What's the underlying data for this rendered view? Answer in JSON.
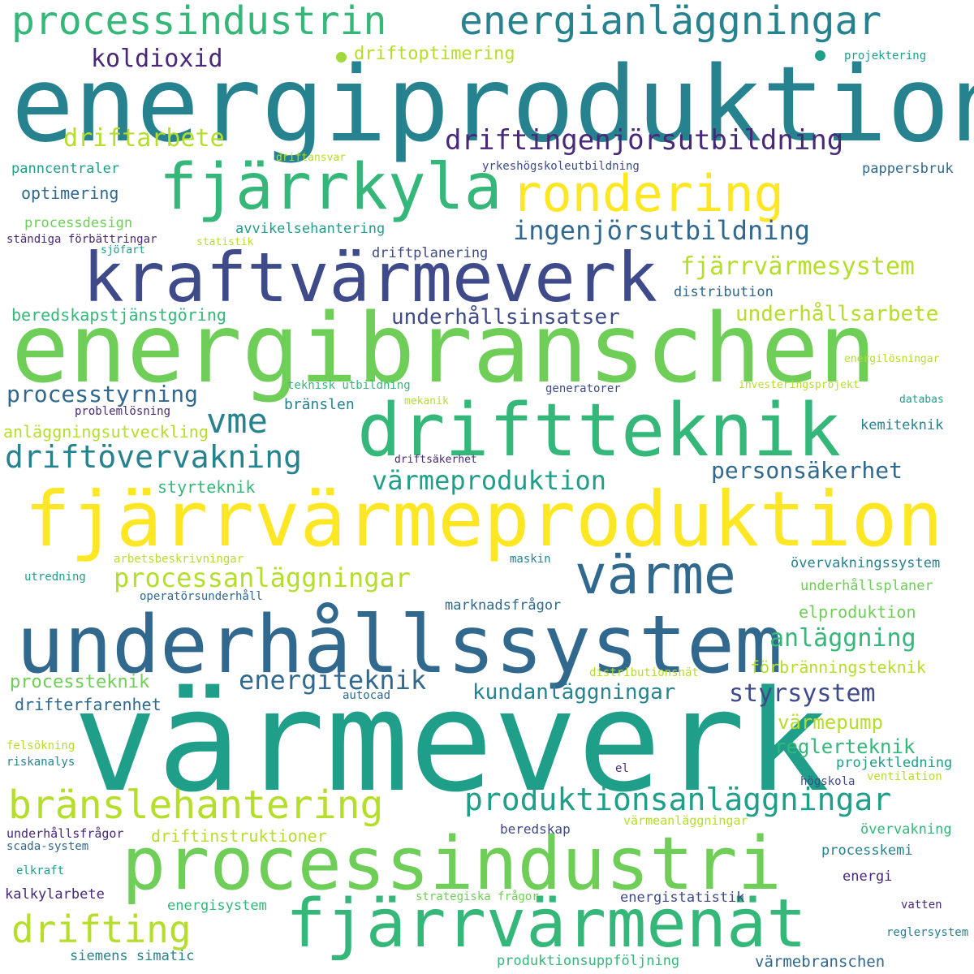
{
  "palette": {
    "dark_purple": "#482878",
    "indigo": "#3e4a89",
    "blue": "#31688e",
    "teal": "#26828e",
    "sea_green": "#1f9e89",
    "green": "#35b779",
    "lime": "#6ece58",
    "yellow_green": "#b5de2b",
    "yellow": "#fde725",
    "dot_lime": "#9fda3a",
    "dot_teal": "#1f9e89"
  },
  "words": [
    "energiproduktion",
    "värmeverk",
    "energibranschen",
    "fjärrvärmeproduktion",
    "underhållssystem",
    "kraftvärmeverk",
    "driftteknik",
    "processindustri",
    "fjärrvärmenät",
    "fjärrkyla",
    "rondering",
    "värme",
    "processindustrin",
    "energianläggningar",
    "bränslehantering",
    "drifting",
    "vme",
    "driftövervakning",
    "produktionsanläggningar",
    "processanläggningar",
    "driftingenjörsutbildning",
    "ingenjörsutbildning",
    "fjärrvärmesystem",
    "värmeproduktion",
    "energiteknik",
    "styrsystem",
    "koldioxid",
    "driftarbete",
    "anläggning",
    "underhållsinsatser",
    "personsäkerhet",
    "underhållsarbete",
    "processtyrning",
    "kundanläggningar",
    "värmepump",
    "reglerteknik",
    "driftoptimering",
    "beredskapstjänstgöring",
    "optimering",
    "anläggningsutveckling",
    "styrteknik",
    "processteknik",
    "drifterfarenhet",
    "elproduktion",
    "förbränningsteknik",
    "driftinstruktioner",
    "panncentraler",
    "pappersbruk",
    "processdesign",
    "avvikelsehantering",
    "driftplanering",
    "distribution",
    "bränslen",
    "kemiteknik",
    "marknadsfrågor",
    "underhållsplaner",
    "övervakningssystem",
    "projektledning",
    "övervakning",
    "processkemi",
    "energisystem",
    "energistatistik",
    "siemens simatic",
    "värmebranschen",
    "produktionsuppföljning",
    "kalkylarbete",
    "underhållsfrågor",
    "beredskap",
    "värmeanläggningar",
    "energi",
    "projektering",
    "driftansvar",
    "yrkeshögskoleutbildning",
    "ständiga förbättringar",
    "statistik",
    "sjöfart",
    "energilösningar",
    "teknisk utbildning",
    "generatorer",
    "investeringsprojekt",
    "mekanik",
    "databas",
    "problemlösning",
    "driftsäkerhet",
    "arbetsbeskrivningar",
    "maskin",
    "utredning",
    "operatörsunderhåll",
    "distributionsnät",
    "autocad",
    "felsökning",
    "riskanalys",
    "el",
    "högskola",
    "ventilation",
    "scada-system",
    "elkraft",
    "strategiska frågor",
    "vatten",
    "reglersystem"
  ]
}
